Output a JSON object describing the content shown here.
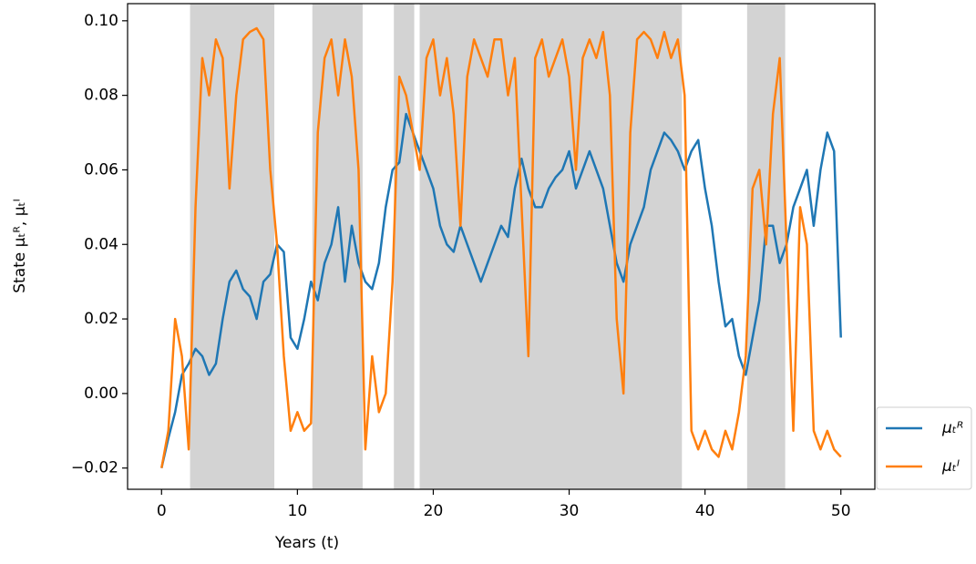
{
  "chart_data": {
    "type": "line",
    "x_label": "Years (t)",
    "y_label": "State μₜᴿ, μₜᴵ",
    "x": [
      0,
      0.5,
      1,
      1.5,
      2,
      2.5,
      3,
      3.5,
      4,
      4.5,
      5,
      5.5,
      6,
      6.5,
      7,
      7.5,
      8,
      8.5,
      9,
      9.5,
      10,
      10.5,
      11,
      11.5,
      12,
      12.5,
      13,
      13.5,
      14,
      14.5,
      15,
      15.5,
      16,
      16.5,
      17,
      17.5,
      18,
      18.5,
      19,
      19.5,
      20,
      20.5,
      21,
      21.5,
      22,
      22.5,
      23,
      23.5,
      24,
      24.5,
      25,
      25.5,
      26,
      26.5,
      27,
      27.5,
      28,
      28.5,
      29,
      29.5,
      30,
      30.5,
      31,
      31.5,
      32,
      32.5,
      33,
      33.5,
      34,
      34.5,
      35,
      35.5,
      36,
      36.5,
      37,
      37.5,
      38,
      38.5,
      39,
      39.5,
      40,
      40.5,
      41,
      41.5,
      42,
      42.5,
      43,
      43.5,
      44,
      44.5,
      45,
      45.5,
      46,
      46.5,
      47,
      47.5,
      48,
      48.5,
      49,
      49.5,
      50
    ],
    "series": [
      {
        "name": "μₜᴿ",
        "color": "#1f77b4",
        "values": [
          -0.02,
          -0.012,
          -0.005,
          0.005,
          0.008,
          0.012,
          0.01,
          0.005,
          0.008,
          0.02,
          0.03,
          0.033,
          0.028,
          0.026,
          0.02,
          0.03,
          0.032,
          0.04,
          0.038,
          0.015,
          0.012,
          0.02,
          0.03,
          0.025,
          0.035,
          0.04,
          0.05,
          0.03,
          0.045,
          0.035,
          0.03,
          0.028,
          0.035,
          0.05,
          0.06,
          0.062,
          0.075,
          0.07,
          0.065,
          0.06,
          0.055,
          0.045,
          0.04,
          0.038,
          0.045,
          0.04,
          0.035,
          0.03,
          0.035,
          0.04,
          0.045,
          0.042,
          0.055,
          0.063,
          0.055,
          0.05,
          0.05,
          0.055,
          0.058,
          0.06,
          0.065,
          0.055,
          0.06,
          0.065,
          0.06,
          0.055,
          0.045,
          0.035,
          0.03,
          0.04,
          0.045,
          0.05,
          0.06,
          0.065,
          0.07,
          0.068,
          0.065,
          0.06,
          0.065,
          0.068,
          0.055,
          0.045,
          0.03,
          0.018,
          0.02,
          0.01,
          0.005,
          0.015,
          0.025,
          0.045,
          0.045,
          0.035,
          0.04,
          0.05,
          0.055,
          0.06,
          0.045,
          0.06,
          0.07,
          0.065,
          0.015
        ]
      },
      {
        "name": "μₜᴵ",
        "color": "#ff7f0e",
        "values": [
          -0.02,
          -0.01,
          0.02,
          0.01,
          -0.015,
          0.05,
          0.09,
          0.08,
          0.095,
          0.09,
          0.055,
          0.08,
          0.095,
          0.097,
          0.098,
          0.095,
          0.06,
          0.04,
          0.01,
          -0.01,
          -0.005,
          -0.01,
          -0.008,
          0.07,
          0.09,
          0.095,
          0.08,
          0.095,
          0.085,
          0.06,
          -0.015,
          0.01,
          -0.005,
          0.0,
          0.03,
          0.085,
          0.08,
          0.07,
          0.06,
          0.09,
          0.095,
          0.08,
          0.09,
          0.075,
          0.045,
          0.085,
          0.095,
          0.09,
          0.085,
          0.095,
          0.095,
          0.08,
          0.09,
          0.05,
          0.01,
          0.09,
          0.095,
          0.085,
          0.09,
          0.095,
          0.085,
          0.06,
          0.09,
          0.095,
          0.09,
          0.097,
          0.08,
          0.02,
          0.0,
          0.07,
          0.095,
          0.097,
          0.095,
          0.09,
          0.097,
          0.09,
          0.095,
          0.08,
          -0.01,
          -0.015,
          -0.01,
          -0.015,
          -0.017,
          -0.01,
          -0.015,
          -0.005,
          0.01,
          0.055,
          0.06,
          0.04,
          0.075,
          0.09,
          0.04,
          -0.01,
          0.05,
          0.04,
          -0.01,
          -0.015,
          -0.01,
          -0.015,
          -0.017
        ]
      }
    ],
    "shaded_regions": [
      [
        2.1,
        8.3
      ],
      [
        11.1,
        14.8
      ],
      [
        17.1,
        18.6
      ],
      [
        19.0,
        38.3
      ],
      [
        43.1,
        45.9
      ]
    ],
    "shade_color": "#d3d3d3",
    "xlim": [
      -2.5,
      52.5
    ],
    "xticks": [
      0,
      10,
      20,
      30,
      40,
      50
    ],
    "ylim": [
      -0.0257,
      0.1046
    ],
    "yticks": [
      {
        "value": -0.02,
        "label": "−0.02"
      },
      {
        "value": 0,
        "label": "0.00"
      },
      0.02,
      0.04,
      0.06,
      0.08,
      {
        "value": 0.1,
        "label": "0.10"
      }
    ],
    "legend": "lower right outside"
  }
}
